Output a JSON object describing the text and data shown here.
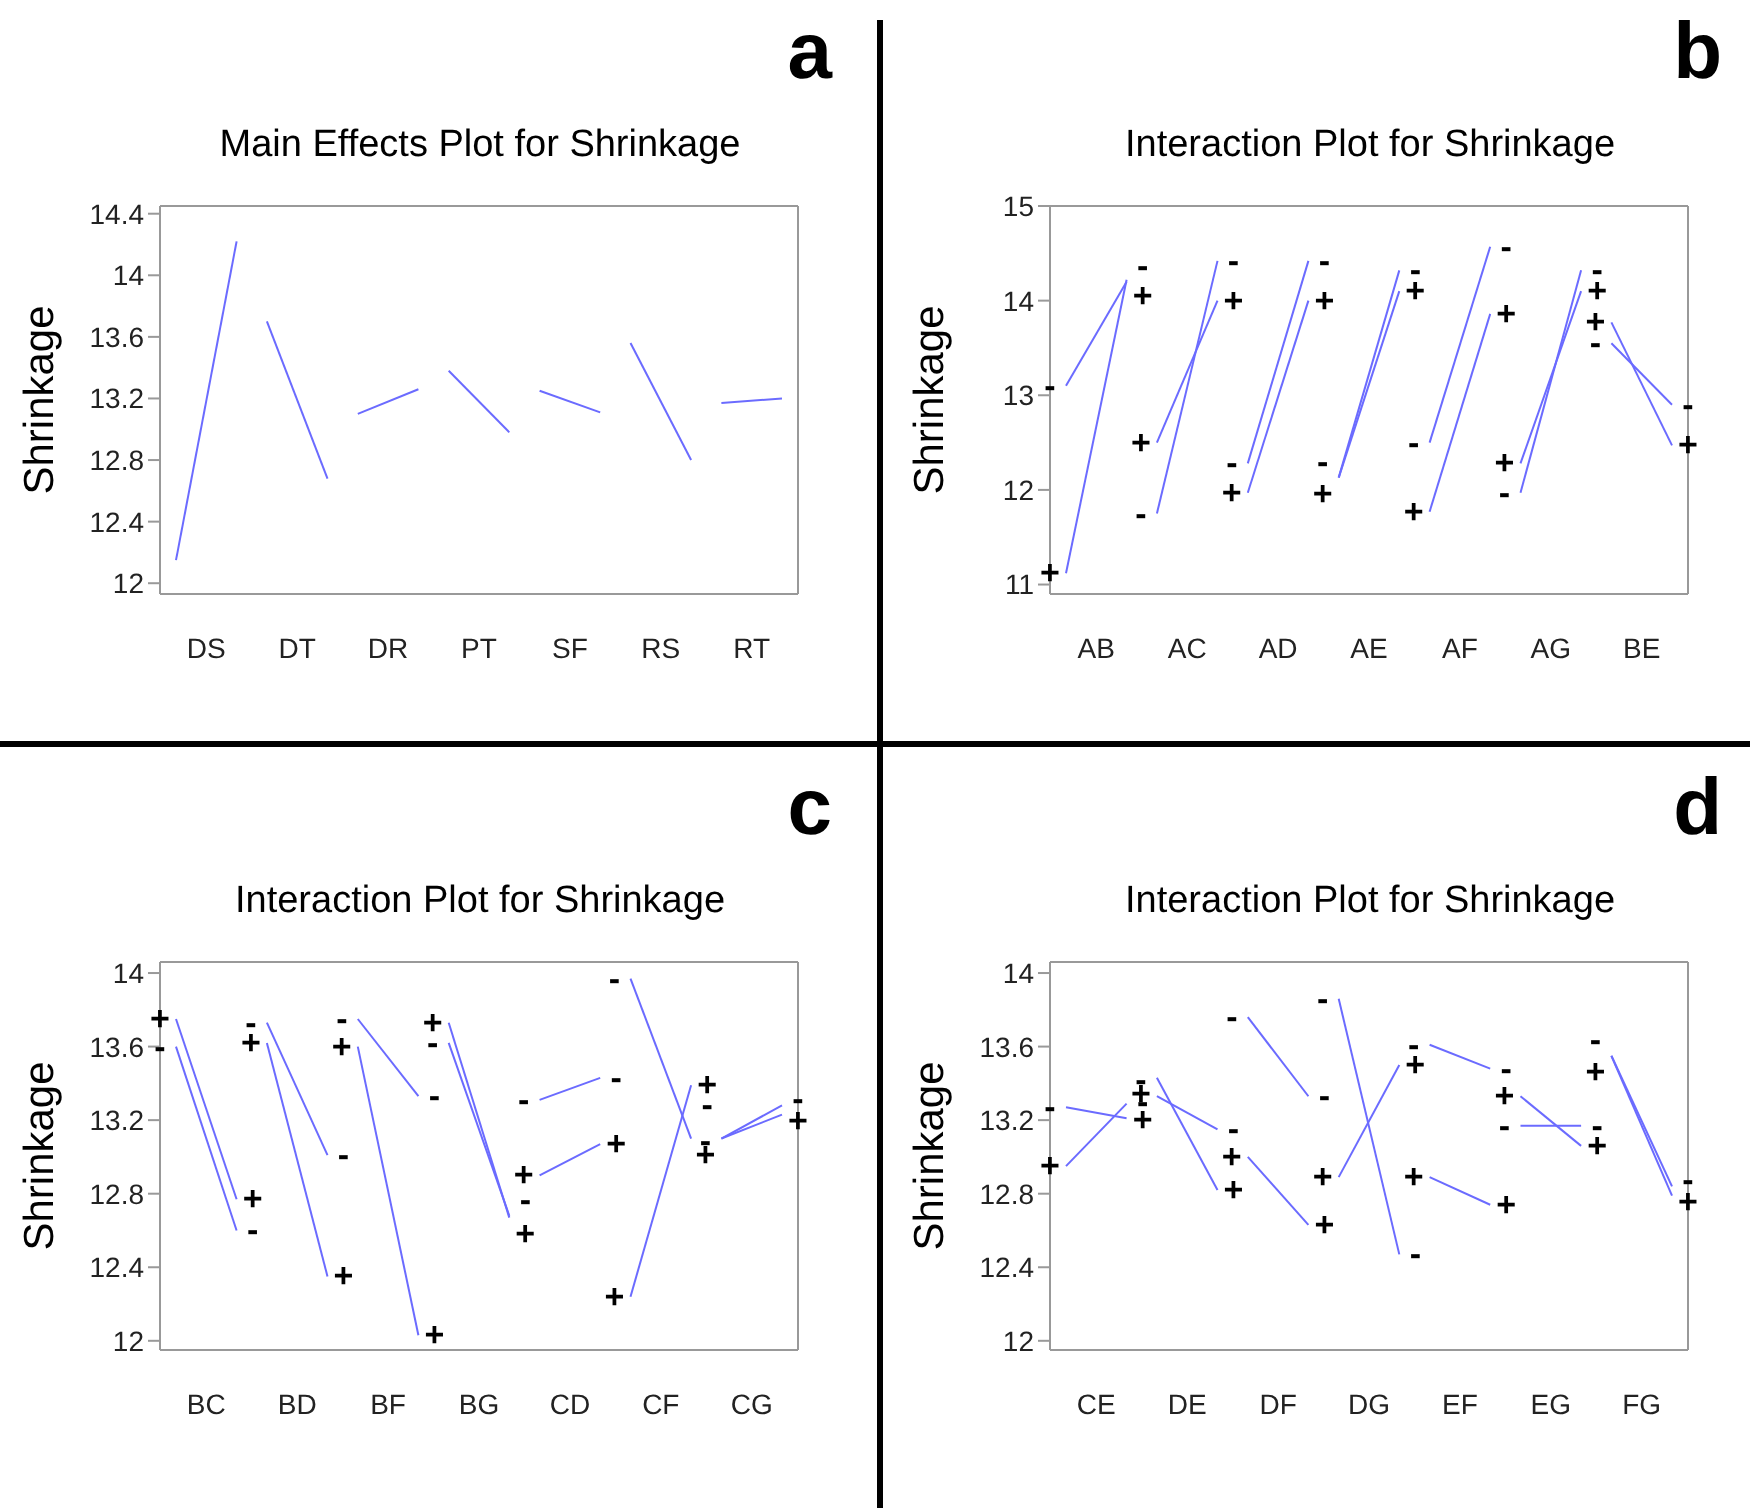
{
  "chart_data": [
    {
      "type": "line",
      "title": "Main Effects Plot for Shrinkage",
      "ylabel": "Shrinkage",
      "annotations": [
        "a"
      ],
      "categories": [
        null,
        "DS",
        null,
        null,
        "DT",
        null,
        null,
        "DR",
        null,
        null,
        "PT",
        null,
        null,
        "SF",
        null,
        null,
        "RS",
        null,
        null,
        "RT",
        null
      ],
      "series": [
        {
          "color": "#6b6bff",
          "values": [
            12.15,
            null,
            14.22,
            13.7,
            null,
            12.68,
            13.1,
            null,
            13.26,
            13.38,
            null,
            12.98,
            13.25,
            null,
            13.11,
            13.56,
            null,
            12.8,
            13.17,
            null,
            13.2
          ]
        }
      ],
      "ylim": [
        11.93,
        14.45
      ],
      "yticks": [
        12,
        12.4,
        12.8,
        13.2,
        13.6,
        14,
        14.4
      ]
    },
    {
      "type": "line",
      "title": "Interaction Plot for Shrinkage",
      "ylabel": "Shrinkage",
      "annotations": [
        "b"
      ],
      "categories": [
        null,
        "AB",
        null,
        null,
        "AC",
        null,
        null,
        "AD",
        null,
        null,
        "AE",
        null,
        null,
        "AF",
        null,
        null,
        "AG",
        null,
        null,
        "BE",
        null
      ],
      "series": [
        {
          "name": "-",
          "color": "#6b6bff",
          "values": [
            13.1,
            null,
            14.2,
            11.75,
            null,
            14.42,
            12.28,
            null,
            14.42,
            12.13,
            null,
            14.32,
            12.5,
            null,
            14.57,
            11.97,
            null,
            14.32,
            13.55,
            null,
            12.9
          ]
        },
        {
          "name": "+",
          "color": "#6b6bff",
          "values": [
            11.12,
            null,
            14.22,
            12.5,
            null,
            14.0,
            11.97,
            null,
            14.0,
            12.13,
            null,
            14.1,
            11.77,
            null,
            13.86,
            12.28,
            null,
            14.1,
            13.77,
            null,
            12.47
          ]
        }
      ],
      "ylim": [
        10.9,
        15
      ],
      "yticks": [
        11,
        12,
        13,
        14,
        15
      ]
    },
    {
      "type": "line",
      "title": "Interaction Plot for Shrinkage",
      "ylabel": "Shrinkage",
      "annotations": [
        "c"
      ],
      "categories": [
        null,
        "BC",
        null,
        null,
        "BD",
        null,
        null,
        "BF",
        null,
        null,
        "BG",
        null,
        null,
        "CD",
        null,
        null,
        "CF",
        null,
        null,
        "CG",
        null
      ],
      "series": [
        {
          "name": "-",
          "color": "#6b6bff",
          "values": [
            13.6,
            null,
            12.6,
            13.73,
            null,
            13.01,
            13.75,
            null,
            13.33,
            13.62,
            null,
            12.68,
            13.31,
            null,
            13.43,
            13.97,
            null,
            13.1,
            13.1,
            null,
            13.23
          ]
        },
        {
          "name": "+",
          "color": "#6b6bff",
          "values": [
            13.75,
            null,
            12.77,
            13.62,
            null,
            12.35,
            13.6,
            null,
            12.03,
            13.73,
            null,
            12.67,
            12.9,
            null,
            13.07,
            12.24,
            null,
            13.39,
            13.1,
            null,
            13.28
          ]
        }
      ],
      "ylim": [
        11.95,
        14.06
      ],
      "yticks": [
        12,
        12.4,
        12.8,
        13.2,
        13.6,
        14
      ]
    },
    {
      "type": "line",
      "title": "Interaction Plot for Shrinkage",
      "ylabel": "Shrinkage",
      "annotations": [
        "d"
      ],
      "categories": [
        null,
        "CE",
        null,
        null,
        "DE",
        null,
        null,
        "DF",
        null,
        null,
        "DG",
        null,
        null,
        "EF",
        null,
        null,
        "EG",
        null,
        null,
        "FG",
        null
      ],
      "series": [
        {
          "name": "-",
          "color": "#6b6bff",
          "values": [
            13.27,
            null,
            13.21,
            13.33,
            null,
            13.15,
            13.76,
            null,
            13.33,
            13.86,
            null,
            12.47,
            13.61,
            null,
            13.48,
            13.17,
            null,
            13.17,
            13.55,
            null,
            12.79
          ]
        },
        {
          "name": "+",
          "color": "#6b6bff",
          "values": [
            12.95,
            null,
            13.29,
            13.43,
            null,
            12.82,
            13.0,
            null,
            12.63,
            12.89,
            null,
            13.5,
            12.89,
            null,
            12.74,
            13.33,
            null,
            13.06,
            13.55,
            null,
            12.84
          ]
        }
      ],
      "ylim": [
        11.95,
        14.06
      ],
      "yticks": [
        12,
        12.4,
        12.8,
        13.2,
        13.6,
        14
      ]
    }
  ]
}
